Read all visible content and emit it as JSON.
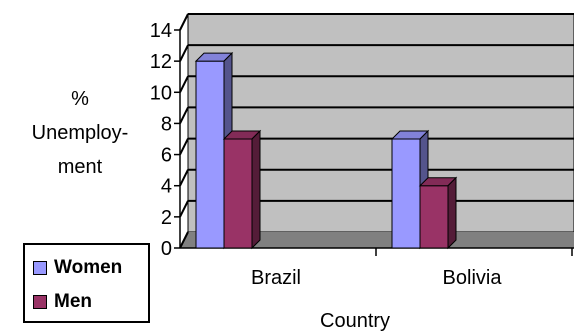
{
  "chart_data": {
    "type": "bar",
    "categories": [
      "Brazil",
      "Bolivia"
    ],
    "series": [
      {
        "name": "Women",
        "values": [
          12,
          7
        ],
        "color": "#9999ff"
      },
      {
        "name": "Men",
        "values": [
          7,
          4
        ],
        "color": "#993366"
      }
    ],
    "xlabel": "Country",
    "ylabel_lines": [
      "%",
      "Unemploy-",
      "ment"
    ],
    "ylim": [
      0,
      14
    ],
    "yticks": [
      0,
      2,
      4,
      6,
      8,
      10,
      12,
      14
    ],
    "grid": true,
    "legend_position": "bottom-left",
    "wall_color": "#c0c0c0",
    "floor_color": "#808080"
  }
}
